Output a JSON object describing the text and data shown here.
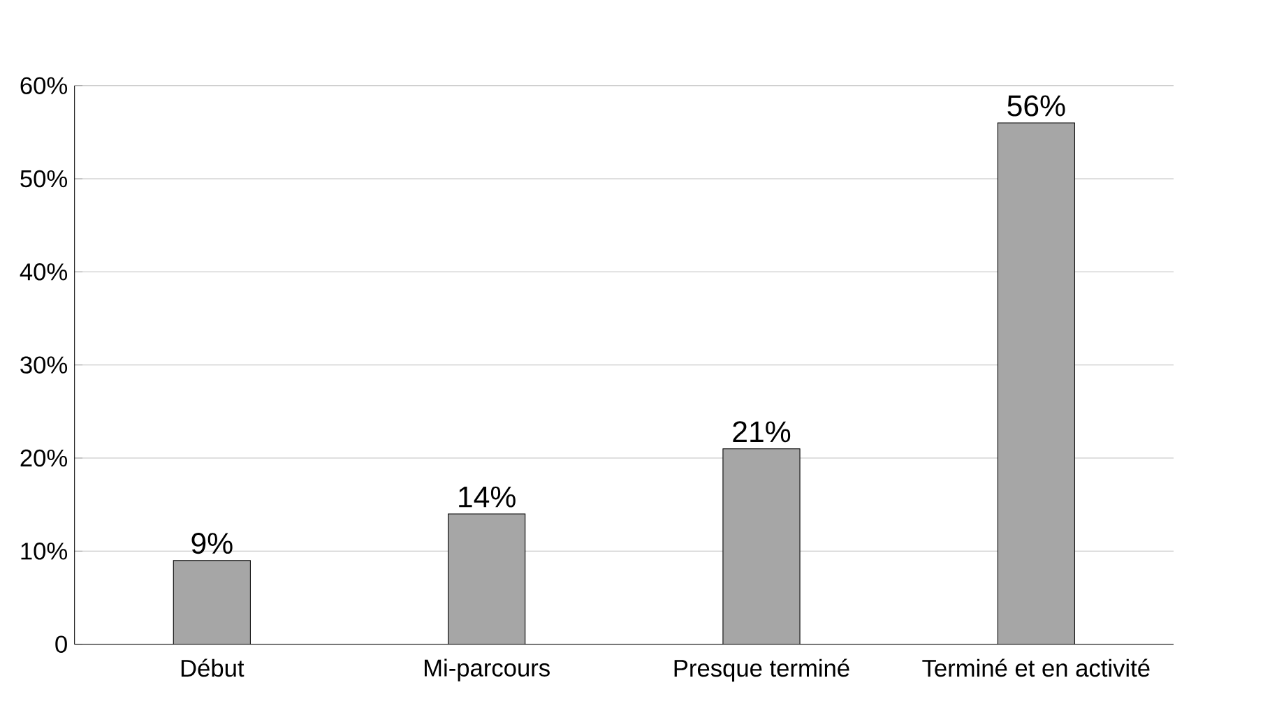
{
  "chart_data": {
    "type": "bar",
    "categories": [
      "Début",
      "Mi-parcours",
      "Presque terminé",
      "Terminé et en activité"
    ],
    "values": [
      9,
      14,
      21,
      56
    ],
    "color": "#a6a6a6",
    "data_labels": true,
    "value_labels": [
      "9%",
      "14%",
      "21%",
      "56%"
    ],
    "ylim": [
      0,
      60
    ],
    "yticks": [
      0,
      {
        "value": 10,
        "label": "10%"
      },
      {
        "value": 20,
        "label": "20%"
      },
      {
        "value": 30,
        "label": "30%"
      },
      {
        "value": 40,
        "label": "40%"
      },
      {
        "value": 50,
        "label": "50%"
      },
      {
        "value": 60,
        "label": "60%"
      }
    ],
    "grid": "y"
  }
}
